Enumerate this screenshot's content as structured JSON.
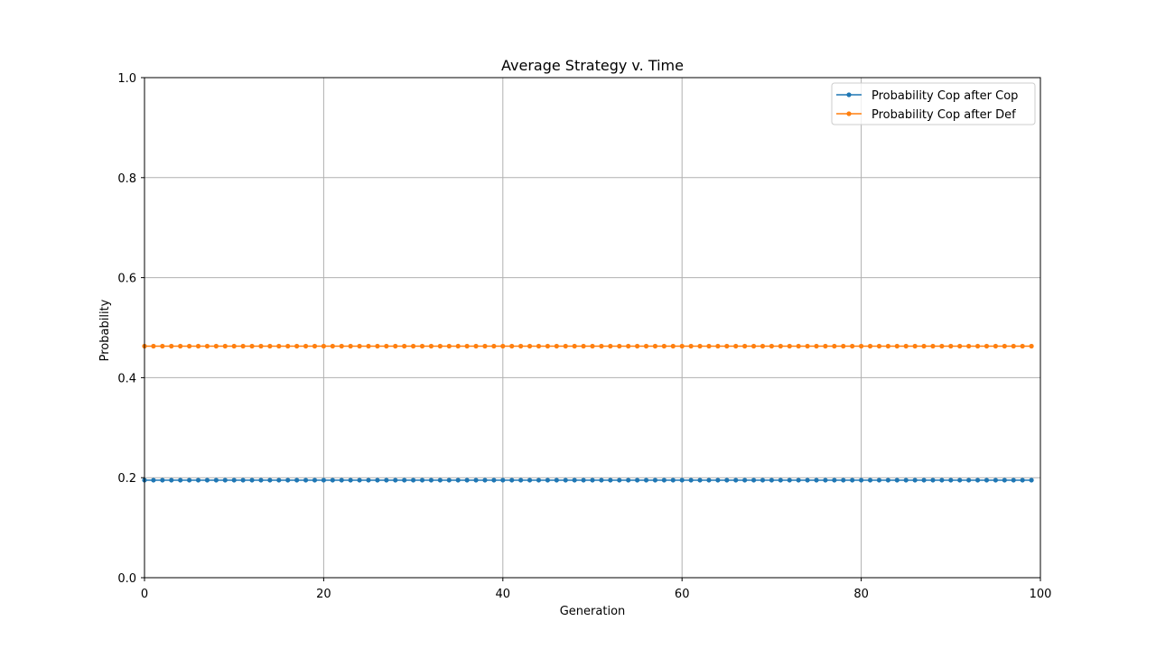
{
  "chart_data": {
    "type": "line",
    "title": "Average Strategy v. Time",
    "xlabel": "Generation",
    "ylabel": "Probability",
    "xlim": [
      0,
      100
    ],
    "ylim": [
      0,
      1.0
    ],
    "xticks": [
      "0",
      "20",
      "40",
      "60",
      "80",
      "100"
    ],
    "yticks": [
      "0.0",
      "0.2",
      "0.4",
      "0.6",
      "0.8",
      "1.0"
    ],
    "grid": true,
    "legend_position": "top-right",
    "x_start": 0,
    "x_end": 99,
    "series": [
      {
        "name": "Probability Cop after Cop",
        "color": "#1f77b4",
        "marker": "circle",
        "value": 0.195
      },
      {
        "name": "Probability Cop after Def",
        "color": "#ff7f0e",
        "marker": "circle",
        "value": 0.463
      }
    ]
  }
}
